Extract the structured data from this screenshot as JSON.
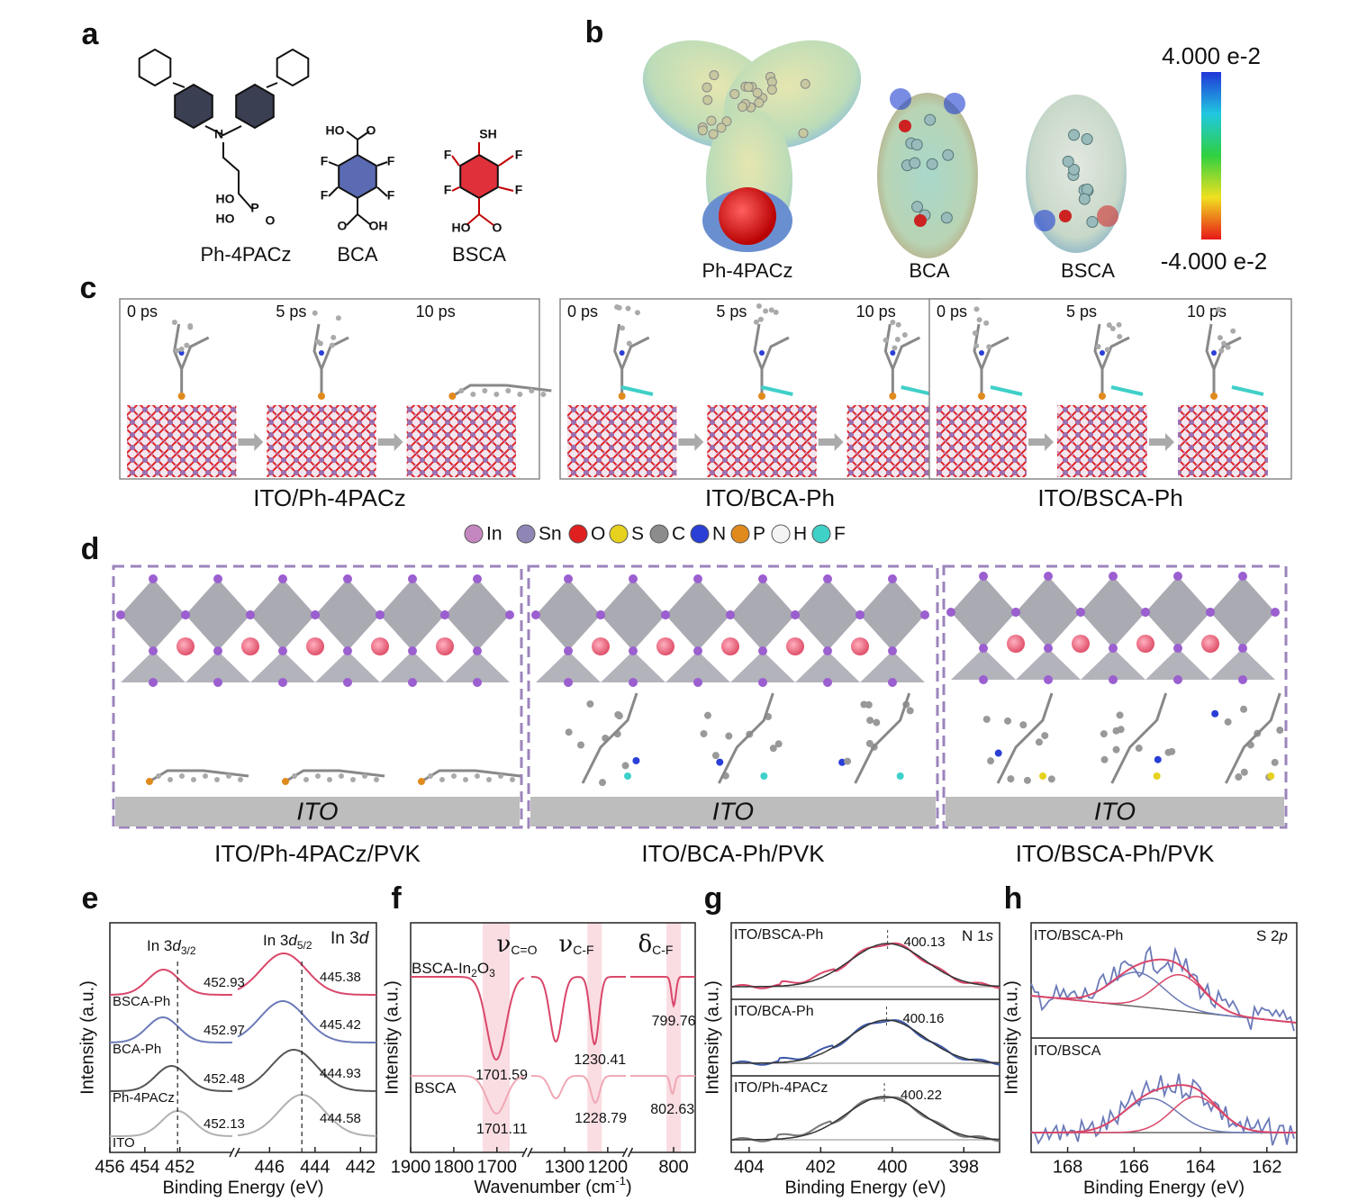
{
  "panels": {
    "a": {
      "label": "a",
      "molecules": [
        {
          "name": "Ph-4PACz",
          "atoms": [
            "N",
            "HO",
            "HO",
            "P",
            "O"
          ]
        },
        {
          "name": "BCA",
          "atoms": [
            "HO",
            "O",
            "F",
            "F",
            "F",
            "F",
            "O",
            "OH"
          ]
        },
        {
          "name": "BSCA",
          "atoms": [
            "SH",
            "F",
            "F",
            "F",
            "F",
            "HO",
            "O"
          ]
        }
      ]
    },
    "b": {
      "label": "b",
      "molecules": [
        "Ph-4PACz",
        "BCA",
        "BSCA"
      ],
      "colorbar": {
        "max": "4.000 e-2",
        "min": "-4.000 e-2"
      }
    },
    "c": {
      "label": "c",
      "systems": [
        {
          "name": "ITO/Ph-4PACz",
          "times": [
            "0 ps",
            "5 ps",
            "10 ps"
          ]
        },
        {
          "name": "ITO/BCA-Ph",
          "times": [
            "0 ps",
            "5 ps",
            "10 ps"
          ]
        },
        {
          "name": "ITO/BSCA-Ph",
          "times": [
            "0 ps",
            "5 ps",
            "10 ps"
          ]
        }
      ],
      "legend": [
        {
          "name": "In",
          "color": "#c486bf"
        },
        {
          "name": "Sn",
          "color": "#8f86b5"
        },
        {
          "name": "O",
          "color": "#e02020"
        },
        {
          "name": "S",
          "color": "#e6d21e"
        },
        {
          "name": "C",
          "color": "#8c8c8c"
        },
        {
          "name": "N",
          "color": "#2a3fd6"
        },
        {
          "name": "P",
          "color": "#e08a1e"
        },
        {
          "name": "H",
          "color": "#f4f4f4"
        },
        {
          "name": "F",
          "color": "#3fd0c8"
        }
      ]
    },
    "d": {
      "label": "d",
      "substrate": "ITO",
      "systems": [
        "ITO/Ph-4PACz/PVK",
        "ITO/BCA-Ph/PVK",
        "ITO/BSCA-Ph/PVK"
      ]
    }
  },
  "chart_data": [
    {
      "type": "line",
      "label": "e",
      "xlabel": "Binding Energy (eV)",
      "ylabel": "Intensity (a.u.)",
      "x_segments": [
        {
          "xlim": [
            456,
            449
          ],
          "xticks": [
            456,
            454,
            452
          ]
        },
        {
          "xlim": [
            447.4,
            441.3
          ],
          "xticks": [
            446,
            444,
            442
          ]
        }
      ],
      "annotations": [
        [
          "In 3",
          "d",
          "3/2"
        ],
        [
          "In 3",
          "d",
          "5/2"
        ],
        [
          "In 3",
          "d"
        ]
      ],
      "series": [
        {
          "name": "BSCA-Ph",
          "color": "#d9476a",
          "peaks": [
            452.93,
            445.38
          ]
        },
        {
          "name": "BCA-Ph",
          "color": "#6b7ab8",
          "peaks": [
            452.97,
            445.42
          ]
        },
        {
          "name": "Ph-4PACz",
          "color": "#555555",
          "peaks": [
            452.48,
            444.93
          ]
        },
        {
          "name": "ITO",
          "color": "#b0b0b0",
          "peaks": [
            452.13,
            444.58
          ]
        }
      ]
    },
    {
      "type": "line",
      "label": "f",
      "xlabel": [
        "Wavenumber (cm",
        "-1",
        ")"
      ],
      "ylabel": "Intensity (a.u.)",
      "x_segments": [
        {
          "xlim": [
            1900,
            1637
          ],
          "xticks": [
            1900,
            1800,
            1700
          ]
        },
        {
          "xlim": [
            1377,
            1158
          ],
          "xticks": [
            1300,
            1200
          ]
        },
        {
          "xlim": [
            900,
            750
          ],
          "xticks": [
            800
          ]
        }
      ],
      "bands": [
        {
          "symbol": "ν",
          "sub": "C=O"
        },
        {
          "symbol": "ν",
          "sub": "C-F"
        },
        {
          "symbol": "δ",
          "sub": "C-F"
        }
      ],
      "series": [
        {
          "name": [
            "BSCA-In",
            "2",
            "O",
            "3"
          ],
          "color": "#d9476a",
          "peaks": [
            1701.59,
            1230.41,
            799.76
          ]
        },
        {
          "name": [
            "BSCA"
          ],
          "color": "#f0a8b4",
          "peaks": [
            1701.11,
            1228.79,
            802.63
          ]
        }
      ]
    },
    {
      "type": "line",
      "label": "g",
      "xlabel": "Binding Energy (eV)",
      "ylabel": "Intensity (a.u.)",
      "xlim": [
        404.5,
        397
      ],
      "xticks": [
        404,
        402,
        400,
        398
      ],
      "annotation": [
        "N 1",
        "s"
      ],
      "series": [
        {
          "name": "ITO/BSCA-Ph",
          "color": "#d9476a",
          "peaks": [
            400.13
          ]
        },
        {
          "name": "ITO/BCA-Ph",
          "color": "#3d5aa8",
          "peaks": [
            400.16
          ]
        },
        {
          "name": "ITO/Ph-4PACz",
          "color": "#777777",
          "peaks": [
            400.22
          ]
        }
      ]
    },
    {
      "type": "line",
      "label": "h",
      "xlabel": "Binding Energy (eV)",
      "ylabel": "Intensity (a.u.)",
      "xlim": [
        169.1,
        161.1
      ],
      "xticks": [
        168,
        166,
        164,
        162
      ],
      "annotation": [
        "S 2",
        "p"
      ],
      "series": [
        {
          "name": "ITO/BSCA-Ph"
        },
        {
          "name": "ITO/BSCA"
        }
      ]
    }
  ]
}
